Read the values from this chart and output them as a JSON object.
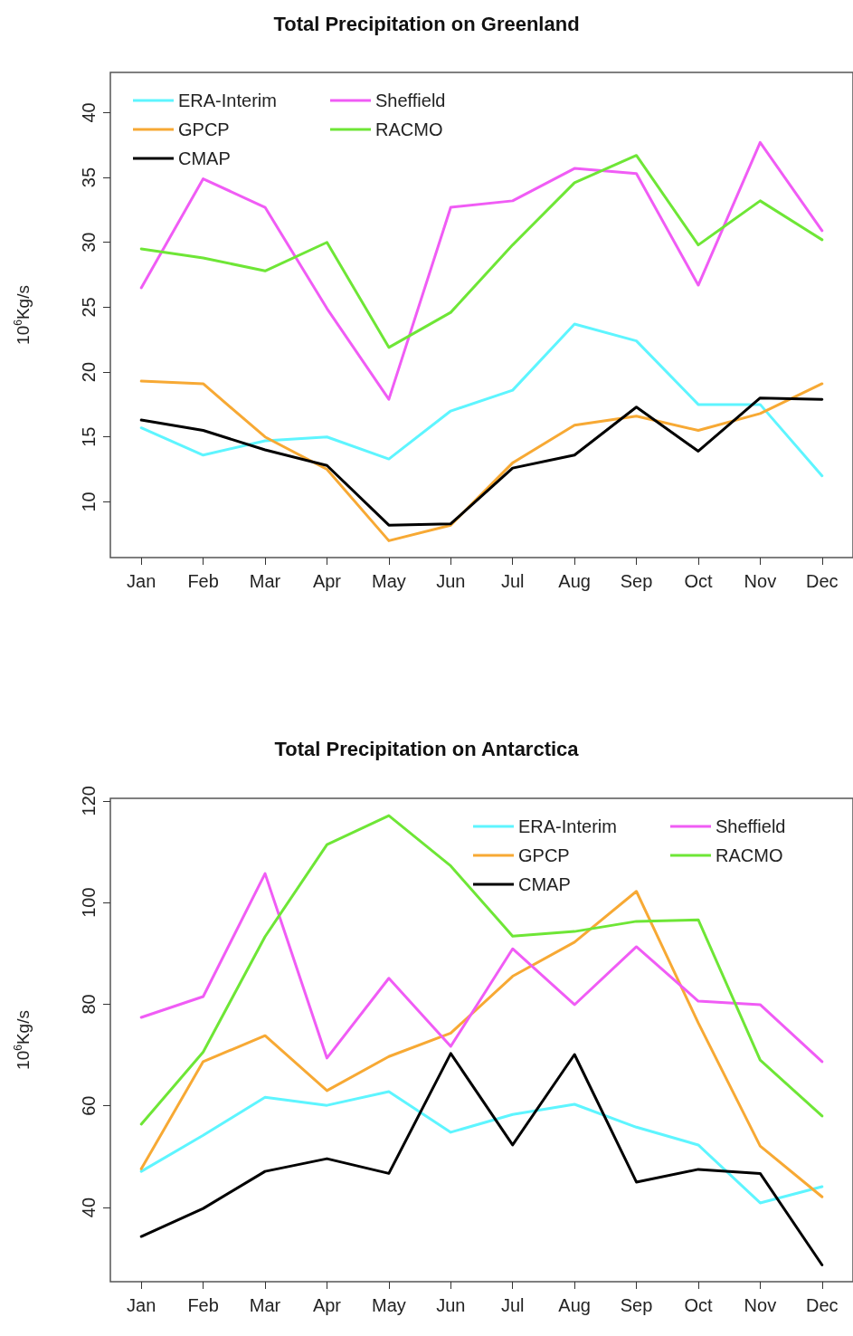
{
  "chart_data": [
    {
      "type": "line",
      "title": "Total Precipitation on Greenland",
      "ylabel": "10$^{6}$Kg/s",
      "categories": [
        "Jan",
        "Feb",
        "Mar",
        "Apr",
        "May",
        "Jun",
        "Jul",
        "Aug",
        "Sep",
        "Oct",
        "Nov",
        "Dec"
      ],
      "ylim": [
        5.7,
        43.1
      ],
      "yticks": [
        10,
        15,
        20,
        25,
        30,
        35,
        40
      ],
      "grid": false,
      "legend": "top left",
      "series": [
        {
          "name": "ERA-Interim",
          "color": "#5ef5ff",
          "values": [
            15.7,
            13.6,
            14.7,
            15.0,
            13.3,
            17.0,
            18.6,
            23.7,
            22.4,
            17.5,
            17.5,
            12.0
          ]
        },
        {
          "name": "GPCP",
          "color": "#f7a934",
          "values": [
            19.3,
            19.1,
            15.0,
            12.5,
            7.0,
            8.2,
            13.0,
            15.9,
            16.6,
            15.5,
            16.8,
            19.1
          ]
        },
        {
          "name": "CMAP",
          "color": "#000000",
          "values": [
            16.3,
            15.5,
            14.0,
            12.8,
            8.2,
            8.3,
            12.6,
            13.6,
            17.3,
            13.9,
            18.0,
            17.9
          ]
        },
        {
          "name": "Sheffield",
          "color": "#f05cf5",
          "values": [
            26.5,
            34.9,
            32.7,
            24.9,
            17.9,
            32.7,
            33.2,
            35.7,
            35.3,
            26.7,
            37.7,
            30.9
          ]
        },
        {
          "name": "RACMO",
          "color": "#6ee636",
          "values": [
            29.5,
            28.8,
            27.8,
            30.0,
            21.9,
            24.6,
            29.8,
            34.6,
            36.7,
            29.8,
            33.2,
            30.2
          ]
        }
      ]
    },
    {
      "type": "line",
      "title": "Total Precipitation on Antarctica",
      "ylabel": "10$^{6}$Kg/s",
      "categories": [
        "Jan",
        "Feb",
        "Mar",
        "Apr",
        "May",
        "Jun",
        "Jul",
        "Aug",
        "Sep",
        "Oct",
        "Nov",
        "Dec"
      ],
      "ylim": [
        25.4,
        120.5
      ],
      "yticks": [
        40,
        60,
        80,
        100,
        120
      ],
      "grid": false,
      "legend": "top right",
      "series": [
        {
          "name": "ERA-Interim",
          "color": "#5ef5ff",
          "values": [
            47.1,
            54.2,
            61.7,
            60.1,
            62.8,
            54.8,
            58.3,
            60.3,
            55.8,
            52.3,
            40.9,
            44.1
          ]
        },
        {
          "name": "GPCP",
          "color": "#f7a934",
          "values": [
            47.6,
            68.7,
            73.8,
            63.0,
            69.7,
            74.3,
            85.5,
            92.2,
            102.2,
            76.3,
            52.1,
            42.1
          ]
        },
        {
          "name": "CMAP",
          "color": "#000000",
          "values": [
            34.3,
            39.8,
            47.1,
            49.6,
            46.7,
            70.3,
            52.3,
            70.1,
            45.0,
            47.5,
            46.7,
            28.7
          ]
        },
        {
          "name": "Sheffield",
          "color": "#f05cf5",
          "values": [
            77.4,
            81.5,
            105.7,
            69.4,
            85.1,
            71.7,
            90.9,
            79.9,
            91.3,
            80.6,
            79.9,
            68.7
          ]
        },
        {
          "name": "RACMO",
          "color": "#6ee636",
          "values": [
            56.4,
            70.6,
            93.3,
            111.4,
            117.1,
            107.2,
            93.4,
            94.3,
            96.3,
            96.6,
            69.0,
            58.0
          ]
        }
      ]
    }
  ]
}
